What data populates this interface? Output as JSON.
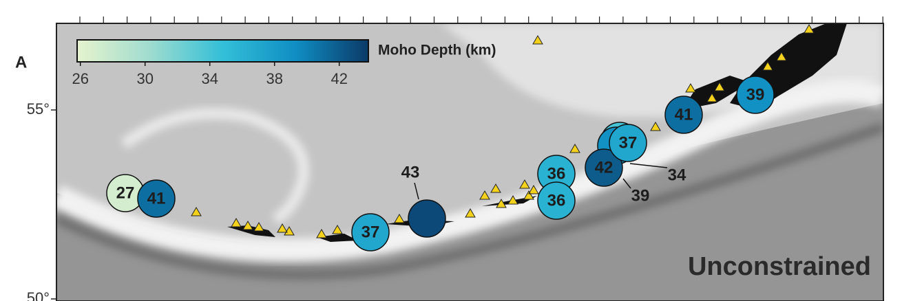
{
  "panel_label": "A",
  "annotation": "Unconstrained",
  "lat_ticks": [
    {
      "value": 55,
      "label": "55°"
    },
    {
      "value": 50,
      "label": "50°"
    }
  ],
  "colorbar": {
    "label": "Moho Depth (km)",
    "range": [
      25.8,
      43.8
    ],
    "ticks": [
      26,
      30,
      34,
      38,
      42
    ],
    "colormap": [
      "#e6f3ce",
      "#9fdccf",
      "#33bfd8",
      "#0f8ec3",
      "#0b3a68"
    ]
  },
  "stations": [
    {
      "depth": 27
    },
    {
      "depth": 41
    },
    {
      "depth": 43
    },
    {
      "depth": 37
    },
    {
      "depth": 36
    },
    {
      "depth": 36
    },
    {
      "depth": 34
    },
    {
      "depth": 39
    },
    {
      "depth": 42
    },
    {
      "depth": 37
    },
    {
      "depth": 41
    },
    {
      "depth": 39
    }
  ]
}
